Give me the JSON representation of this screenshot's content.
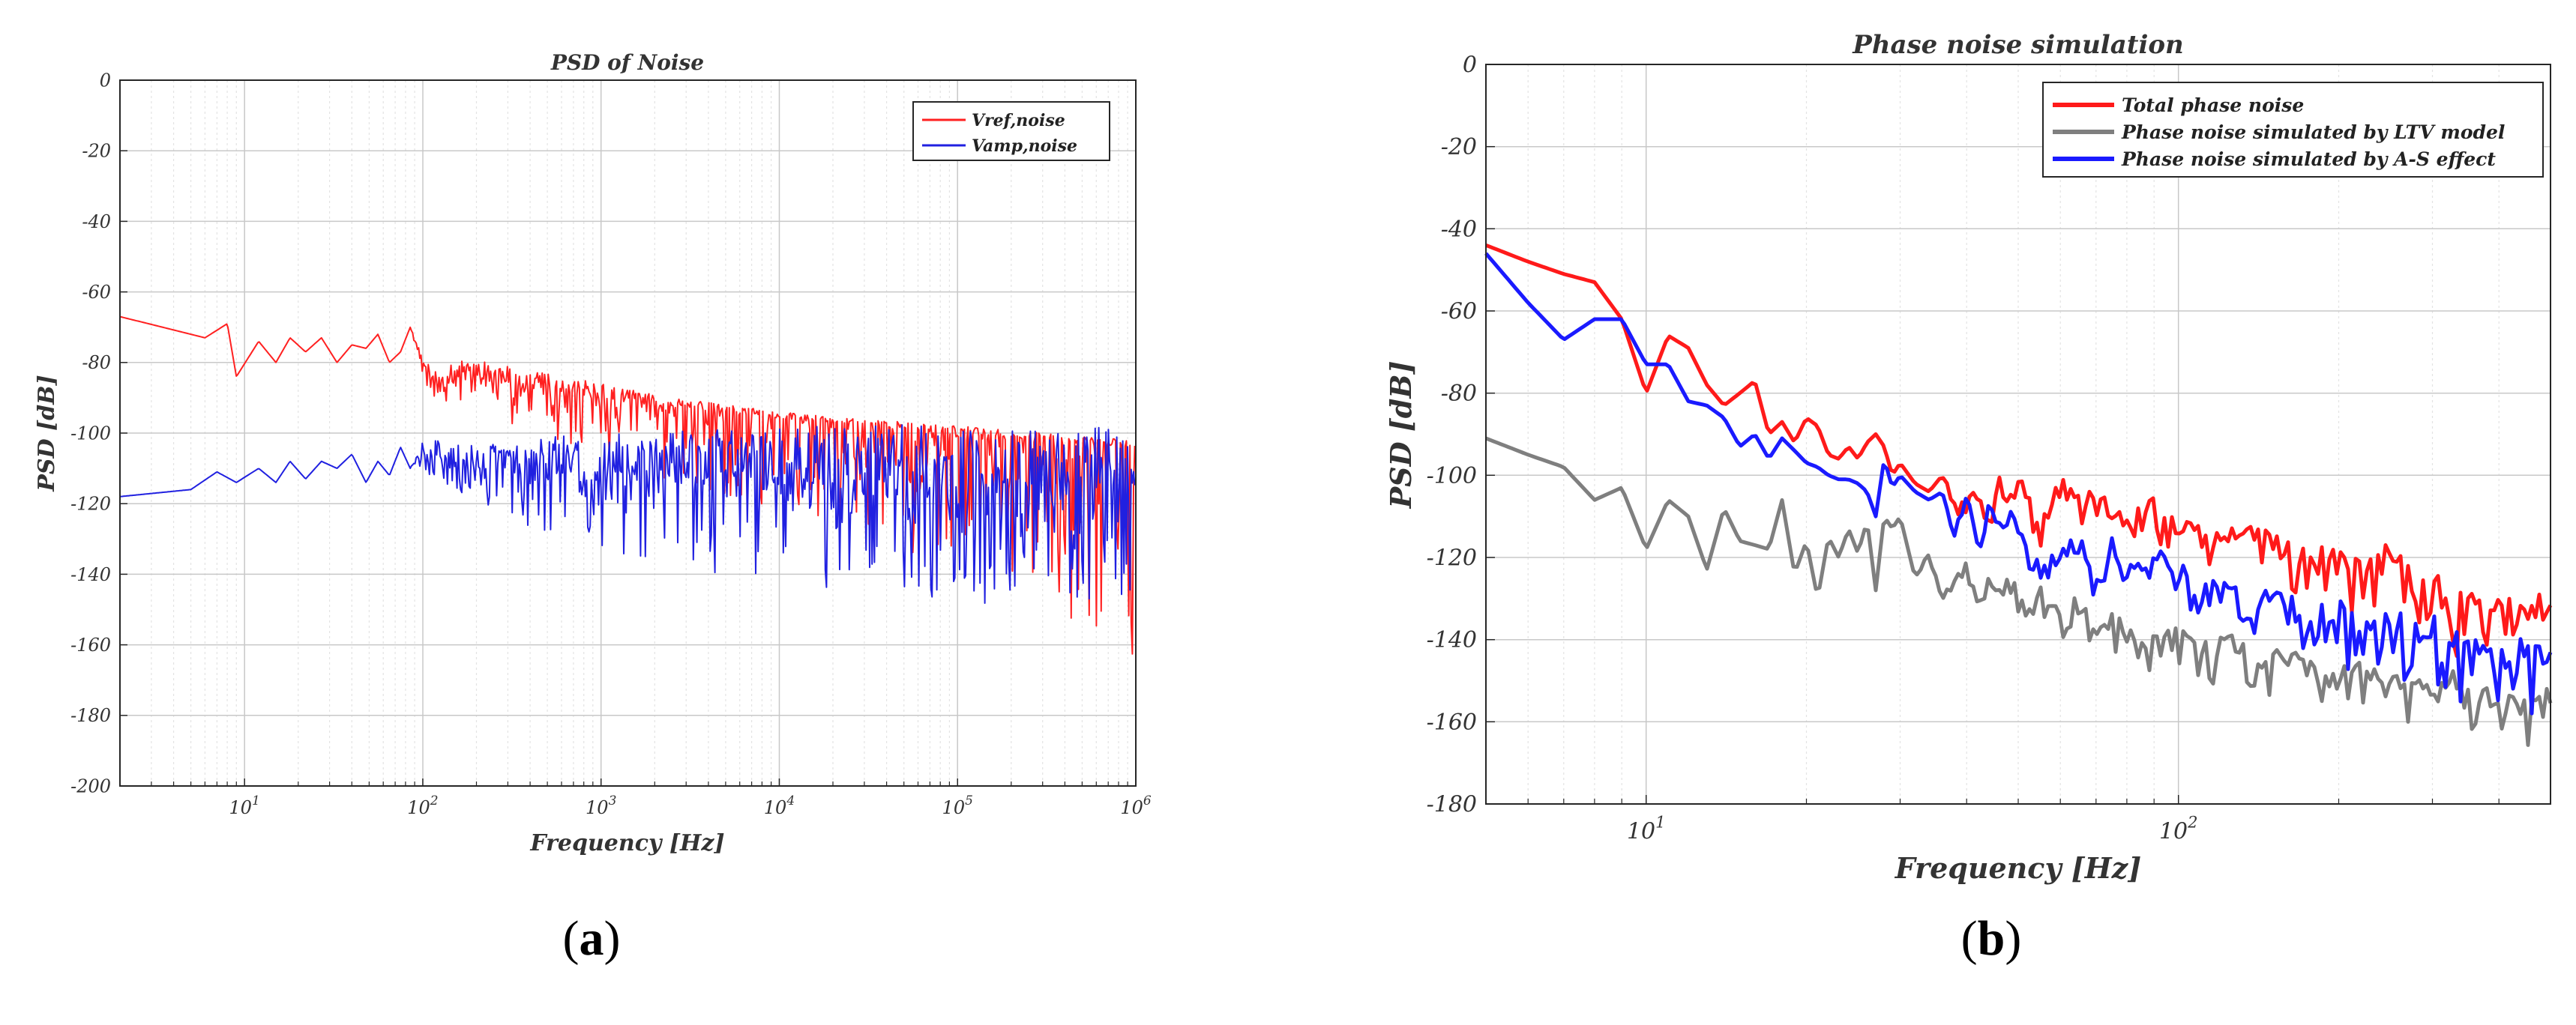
{
  "figure": {
    "panels": [
      {
        "caption_letter": "a"
      },
      {
        "caption_letter": "b"
      }
    ]
  },
  "chart_data": [
    {
      "type": "line",
      "title": "PSD of Noise",
      "xlabel": "Frequency [Hz]",
      "ylabel": "PSD [dB]",
      "xscale": "log",
      "xlim": [
        2,
        1000000
      ],
      "ylim": [
        -200,
        0
      ],
      "yticks": [
        0,
        -20,
        -40,
        -60,
        -80,
        -100,
        -120,
        -140,
        -160,
        -180,
        -200
      ],
      "xticks": [
        {
          "value": 10,
          "label": "10",
          "exp": "1"
        },
        {
          "value": 100,
          "label": "10",
          "exp": "2"
        },
        {
          "value": 1000,
          "label": "10",
          "exp": "3"
        },
        {
          "value": 10000,
          "label": "10",
          "exp": "4"
        },
        {
          "value": 100000,
          "label": "10",
          "exp": "5"
        },
        {
          "value": 1000000,
          "label": "10",
          "exp": "6"
        }
      ],
      "grid": true,
      "minor_grid": true,
      "legend_position": "top-right",
      "series": [
        {
          "name": "Vref,noise",
          "color": "#ff2020",
          "x": [
            2,
            6,
            8,
            9,
            12,
            15,
            18,
            22,
            27,
            33,
            40,
            48,
            56,
            65,
            75,
            85,
            100,
            120,
            150,
            200,
            300,
            500,
            1000,
            2000,
            5000,
            10000,
            30000,
            100000,
            300000,
            1000000
          ],
          "values": [
            -67,
            -73,
            -69,
            -84,
            -74,
            -80,
            -73,
            -77,
            -73,
            -80,
            -75,
            -76,
            -72,
            -80,
            -77,
            -70,
            -80,
            -86,
            -82,
            -84,
            -86,
            -88,
            -90,
            -92,
            -94,
            -96,
            -98,
            -100,
            -102,
            -104
          ],
          "spread_low": [
            0,
            0,
            0,
            0,
            0,
            0,
            0,
            0,
            0,
            0,
            0,
            0,
            0,
            0,
            0,
            0,
            5,
            6,
            8,
            9,
            11,
            13,
            16,
            20,
            24,
            28,
            33,
            38,
            46,
            60
          ],
          "spread_high": [
            0,
            0,
            0,
            0,
            0,
            0,
            0,
            0,
            0,
            0,
            0,
            0,
            0,
            0,
            0,
            0,
            2,
            3,
            4,
            5,
            5,
            5,
            4,
            3,
            2,
            2,
            2,
            2,
            2,
            2
          ]
        },
        {
          "name": "Vamp,noise",
          "color": "#2020e0",
          "x": [
            2,
            5,
            7,
            9,
            12,
            15,
            18,
            22,
            27,
            33,
            40,
            48,
            56,
            65,
            75,
            85,
            100,
            150,
            200,
            300,
            500,
            1000,
            2000,
            5000,
            10000,
            30000,
            100000,
            300000,
            1000000
          ],
          "values": [
            -118,
            -116,
            -111,
            -114,
            -110,
            -114,
            -108,
            -113,
            -108,
            -110,
            -106,
            -114,
            -108,
            -112,
            -104,
            -110,
            -106,
            -108,
            -110,
            -110,
            -111,
            -111,
            -112,
            -112,
            -113,
            -113,
            -114,
            -114,
            -114
          ],
          "spread_low": [
            0,
            0,
            0,
            0,
            0,
            0,
            0,
            0,
            0,
            0,
            0,
            0,
            0,
            0,
            0,
            0,
            5,
            8,
            10,
            14,
            18,
            22,
            25,
            28,
            30,
            32,
            34,
            36,
            38
          ],
          "spread_high": [
            0,
            0,
            0,
            0,
            0,
            0,
            0,
            0,
            0,
            0,
            0,
            0,
            0,
            0,
            0,
            0,
            4,
            6,
            7,
            8,
            10,
            11,
            12,
            14,
            15,
            16,
            16,
            16,
            16
          ]
        }
      ]
    },
    {
      "type": "line",
      "title": "Phase noise simulation",
      "xlabel": "Frequency [Hz]",
      "ylabel": "PSD [dB]",
      "xscale": "log",
      "xlim": [
        5,
        500
      ],
      "ylim": [
        -180,
        0
      ],
      "yticks": [
        0,
        -20,
        -40,
        -60,
        -80,
        -100,
        -120,
        -140,
        -160,
        -180
      ],
      "xticks": [
        {
          "value": 10,
          "label": "10",
          "exp": "1"
        },
        {
          "value": 100,
          "label": "10",
          "exp": "2"
        }
      ],
      "grid": true,
      "minor_grid": true,
      "legend_position": "top-right",
      "series": [
        {
          "name": "Total phase noise",
          "color": "#ff1a1a",
          "x": [
            5,
            6,
            7,
            8,
            9,
            10,
            11,
            12,
            13,
            14,
            15,
            16,
            17,
            18,
            19,
            20,
            21,
            22,
            23,
            24,
            25,
            26,
            27,
            28,
            29,
            30,
            32,
            34,
            36,
            38,
            40,
            42,
            44,
            46,
            48,
            50,
            55,
            60,
            65,
            70,
            75,
            80,
            90,
            100,
            110,
            120,
            140,
            160,
            180,
            200,
            220,
            250,
            280,
            300,
            330,
            360,
            380,
            400,
            450,
            500
          ],
          "values": [
            -44,
            -48,
            -51,
            -53,
            -62,
            -80,
            -66,
            -69,
            -78,
            -83,
            -80,
            -77,
            -90,
            -87,
            -92,
            -86,
            -88,
            -95,
            -96,
            -93,
            -96,
            -92,
            -90,
            -93,
            -100,
            -97,
            -102,
            -104,
            -100,
            -107,
            -108,
            -103,
            -112,
            -100,
            -108,
            -101,
            -113,
            -103,
            -108,
            -105,
            -110,
            -112,
            -108,
            -115,
            -112,
            -116,
            -114,
            -120,
            -118,
            -122,
            -124,
            -120,
            -128,
            -126,
            -132,
            -130,
            -135,
            -132,
            -136,
            -130
          ],
          "spread_low": [
            0,
            0,
            0,
            0,
            0,
            0,
            0,
            0,
            0,
            0,
            0,
            0,
            0,
            0,
            0,
            0,
            0,
            0,
            0,
            0,
            0,
            0,
            0,
            0,
            0,
            0,
            0,
            0,
            0,
            2,
            3,
            3,
            3,
            4,
            4,
            4,
            5,
            5,
            5,
            6,
            6,
            6,
            7,
            7,
            8,
            8,
            9,
            9,
            10,
            10,
            12,
            12,
            14,
            14,
            16,
            18,
            20,
            24,
            12,
            10
          ],
          "spread_high": [
            0,
            0,
            0,
            0,
            0,
            0,
            0,
            0,
            0,
            0,
            0,
            0,
            0,
            0,
            0,
            0,
            0,
            0,
            0,
            0,
            0,
            0,
            0,
            0,
            0,
            0,
            0,
            0,
            0,
            2,
            2,
            2,
            2,
            2,
            2,
            2,
            3,
            3,
            3,
            3,
            3,
            3,
            3,
            3,
            3,
            3,
            4,
            4,
            4,
            4,
            4,
            4,
            4,
            4,
            4,
            4,
            4,
            4,
            4,
            4
          ]
        },
        {
          "name": "Phase noise simulated by LTV model",
          "color": "#7f7f7f",
          "x": [
            5,
            6,
            7,
            8,
            9,
            10,
            11,
            12,
            13,
            14,
            15,
            16,
            17,
            18,
            19,
            20,
            21,
            22,
            23,
            24,
            25,
            26,
            27,
            28,
            29,
            30,
            32,
            34,
            36,
            38,
            40,
            42,
            44,
            46,
            48,
            50,
            55,
            60,
            65,
            70,
            75,
            80,
            90,
            100,
            110,
            120,
            140,
            160,
            180,
            200,
            220,
            250,
            280,
            300,
            330,
            360,
            400,
            450,
            500
          ],
          "values": [
            -91,
            -95,
            -98,
            -106,
            -103,
            -118,
            -106,
            -110,
            -123,
            -108,
            -116,
            -117,
            -118,
            -106,
            -124,
            -116,
            -130,
            -115,
            -120,
            -113,
            -119,
            -111,
            -128,
            -110,
            -113,
            -110,
            -125,
            -119,
            -130,
            -125,
            -122,
            -130,
            -126,
            -128,
            -124,
            -132,
            -130,
            -136,
            -130,
            -138,
            -134,
            -140,
            -142,
            -138,
            -144,
            -140,
            -146,
            -145,
            -148,
            -150,
            -147,
            -152,
            -150,
            -155,
            -150,
            -156,
            -152,
            -157,
            -152
          ],
          "spread_low": [
            0,
            0,
            0,
            0,
            0,
            0,
            0,
            0,
            0,
            0,
            0,
            0,
            0,
            0,
            0,
            0,
            0,
            0,
            0,
            0,
            0,
            0,
            0,
            0,
            0,
            0,
            0,
            2,
            3,
            3,
            3,
            4,
            4,
            4,
            5,
            5,
            6,
            6,
            7,
            8,
            8,
            8,
            9,
            9,
            10,
            10,
            10,
            10,
            10,
            10,
            10,
            10,
            10,
            10,
            10,
            10,
            10,
            10,
            10
          ],
          "spread_high": [
            0,
            0,
            0,
            0,
            0,
            0,
            0,
            0,
            0,
            0,
            0,
            0,
            0,
            0,
            0,
            0,
            0,
            0,
            0,
            0,
            0,
            0,
            0,
            0,
            0,
            0,
            0,
            2,
            3,
            3,
            3,
            3,
            3,
            3,
            3,
            3,
            3,
            3,
            3,
            3,
            3,
            3,
            3,
            3,
            3,
            3,
            3,
            3,
            3,
            3,
            3,
            3,
            3,
            3,
            3,
            3,
            3,
            3,
            3
          ]
        },
        {
          "name": "Phase noise simulated by A-S effect",
          "color": "#1a1aff",
          "x": [
            5,
            6,
            7,
            8,
            9,
            10,
            11,
            12,
            13,
            14,
            15,
            16,
            17,
            18,
            19,
            20,
            21,
            22,
            23,
            24,
            25,
            26,
            27,
            28,
            29,
            30,
            32,
            34,
            36,
            38,
            40,
            42,
            44,
            46,
            48,
            50,
            55,
            60,
            65,
            70,
            75,
            80,
            90,
            100,
            110,
            120,
            140,
            160,
            180,
            200,
            220,
            250,
            280,
            300,
            330,
            360,
            400,
            450,
            500
          ],
          "values": [
            -46,
            -58,
            -67,
            -62,
            -62,
            -73,
            -73,
            -82,
            -83,
            -86,
            -93,
            -90,
            -96,
            -91,
            -94,
            -97,
            -98,
            -100,
            -101,
            -101,
            -102,
            -104,
            -110,
            -96,
            -103,
            -100,
            -104,
            -106,
            -104,
            -115,
            -106,
            -118,
            -108,
            -112,
            -110,
            -114,
            -123,
            -118,
            -115,
            -128,
            -118,
            -125,
            -120,
            -124,
            -128,
            -126,
            -130,
            -132,
            -136,
            -134,
            -138,
            -136,
            -140,
            -138,
            -142,
            -140,
            -146,
            -143,
            -147
          ],
          "spread_low": [
            0,
            0,
            0,
            0,
            0,
            0,
            0,
            0,
            0,
            0,
            0,
            0,
            0,
            0,
            0,
            0,
            0,
            0,
            0,
            0,
            0,
            0,
            0,
            0,
            0,
            0,
            0,
            0,
            0,
            2,
            3,
            3,
            3,
            4,
            4,
            4,
            5,
            5,
            5,
            6,
            6,
            6,
            7,
            7,
            8,
            8,
            9,
            10,
            10,
            12,
            12,
            12,
            14,
            14,
            16,
            18,
            14,
            18,
            16
          ],
          "spread_high": [
            0,
            0,
            0,
            0,
            0,
            0,
            0,
            0,
            0,
            0,
            0,
            0,
            0,
            0,
            0,
            0,
            0,
            0,
            0,
            0,
            0,
            0,
            0,
            0,
            0,
            0,
            0,
            0,
            0,
            2,
            2,
            2,
            2,
            2,
            2,
            2,
            3,
            3,
            3,
            3,
            3,
            3,
            3,
            3,
            3,
            3,
            4,
            4,
            4,
            4,
            4,
            4,
            4,
            4,
            4,
            4,
            4,
            4,
            4
          ]
        }
      ]
    }
  ]
}
